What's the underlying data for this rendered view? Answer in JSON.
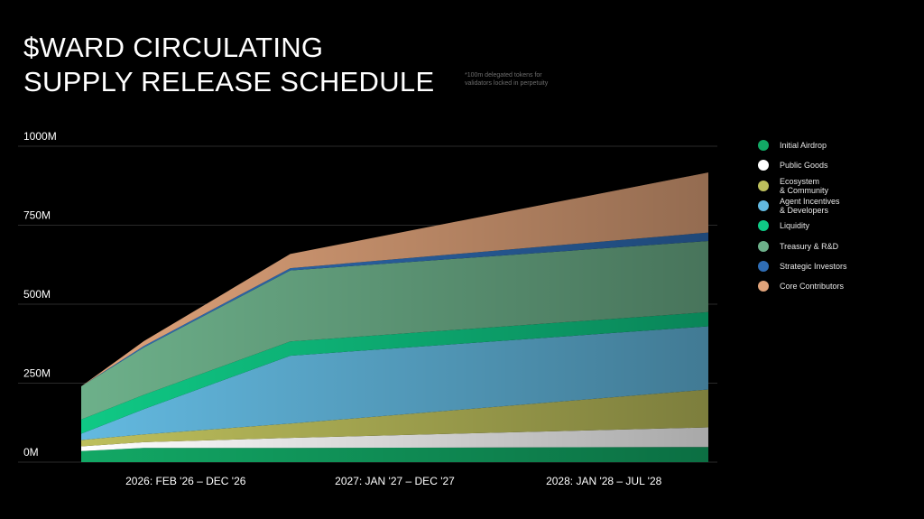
{
  "title_lines": [
    "$WARD CIRCULATING",
    "SUPPLY RELEASE SCHEDULE"
  ],
  "footnote": "*100m delegated tokens for validators locked in perpetuity",
  "chart_data": {
    "type": "area",
    "stacked": true,
    "ylim": [
      0,
      1000
    ],
    "y_ticks": [
      0,
      250,
      500,
      750,
      1000
    ],
    "y_tick_labels": [
      "0M",
      "250M",
      "500M",
      "750M",
      "1000M"
    ],
    "grid": true,
    "legend_position": "right",
    "categories": [
      "2026: FEB '26 – DEC '26",
      "2027: JAN '27 – DEC '27",
      "2028: JAN '28 – JUL '28"
    ],
    "category_spans": [
      [
        0,
        1
      ],
      [
        1,
        2
      ],
      [
        2,
        3
      ]
    ],
    "x": [
      0,
      0.3,
      1,
      3
    ],
    "series": [
      {
        "name": "Initial Airdrop",
        "color": "#12a865",
        "values": [
          35,
          45,
          45,
          48
        ]
      },
      {
        "name": "Public Goods",
        "color": "#ffffff",
        "values": [
          15,
          18,
          32,
          62
        ]
      },
      {
        "name": "Ecosystem\n& Community",
        "color": "#bdbf5c",
        "values": [
          20,
          25,
          45,
          120
        ]
      },
      {
        "name": "Agent Incentives\n& Developers",
        "color": "#63b9e0",
        "values": [
          20,
          80,
          215,
          200
        ]
      },
      {
        "name": "Liquidity",
        "color": "#0fc985",
        "values": [
          45,
          45,
          45,
          45
        ]
      },
      {
        "name": "Treasury & R&D",
        "color": "#6db08a",
        "values": [
          105,
          150,
          225,
          225
        ]
      },
      {
        "name": "Strategic Investors",
        "color": "#2f6db5",
        "values": [
          0,
          5,
          7,
          27
        ]
      },
      {
        "name": "Core Contributors",
        "color": "#e0a37a",
        "values": [
          0,
          15,
          45,
          190
        ]
      }
    ]
  }
}
